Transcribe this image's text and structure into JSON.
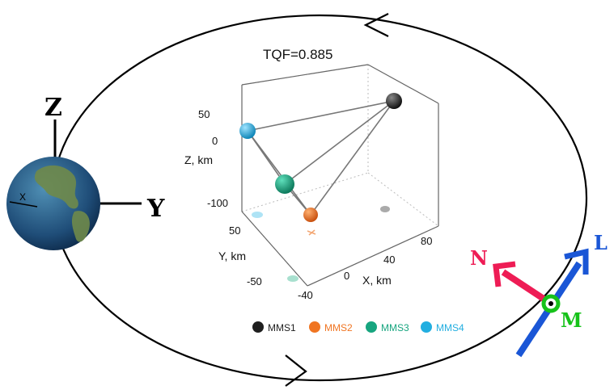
{
  "plot": {
    "title": "TQF=0.885",
    "z_axis_label": "Z, km",
    "y_axis_label": "Y, km",
    "x_axis_label": "X, km",
    "z_ticks": [
      "50",
      "0",
      "-100"
    ],
    "y_ticks": [
      "50",
      "-50"
    ],
    "x_ticks": [
      "80",
      "40",
      "0",
      "-40"
    ]
  },
  "earth_axes": {
    "z_label": "Z",
    "y_label": "Y",
    "x_label": "X"
  },
  "lmn": {
    "n_label": "N",
    "l_label": "L",
    "m_label": "M",
    "colors": {
      "n": "#ee1c55",
      "l": "#1a56d6",
      "m": "#17c21a"
    }
  },
  "legend": [
    {
      "label": "MMS1",
      "color": "#1f1f1f"
    },
    {
      "label": "MMS2",
      "color": "#f07522"
    },
    {
      "label": "MMS3",
      "color": "#17a57f"
    },
    {
      "label": "MMS4",
      "color": "#22aee0"
    }
  ]
}
